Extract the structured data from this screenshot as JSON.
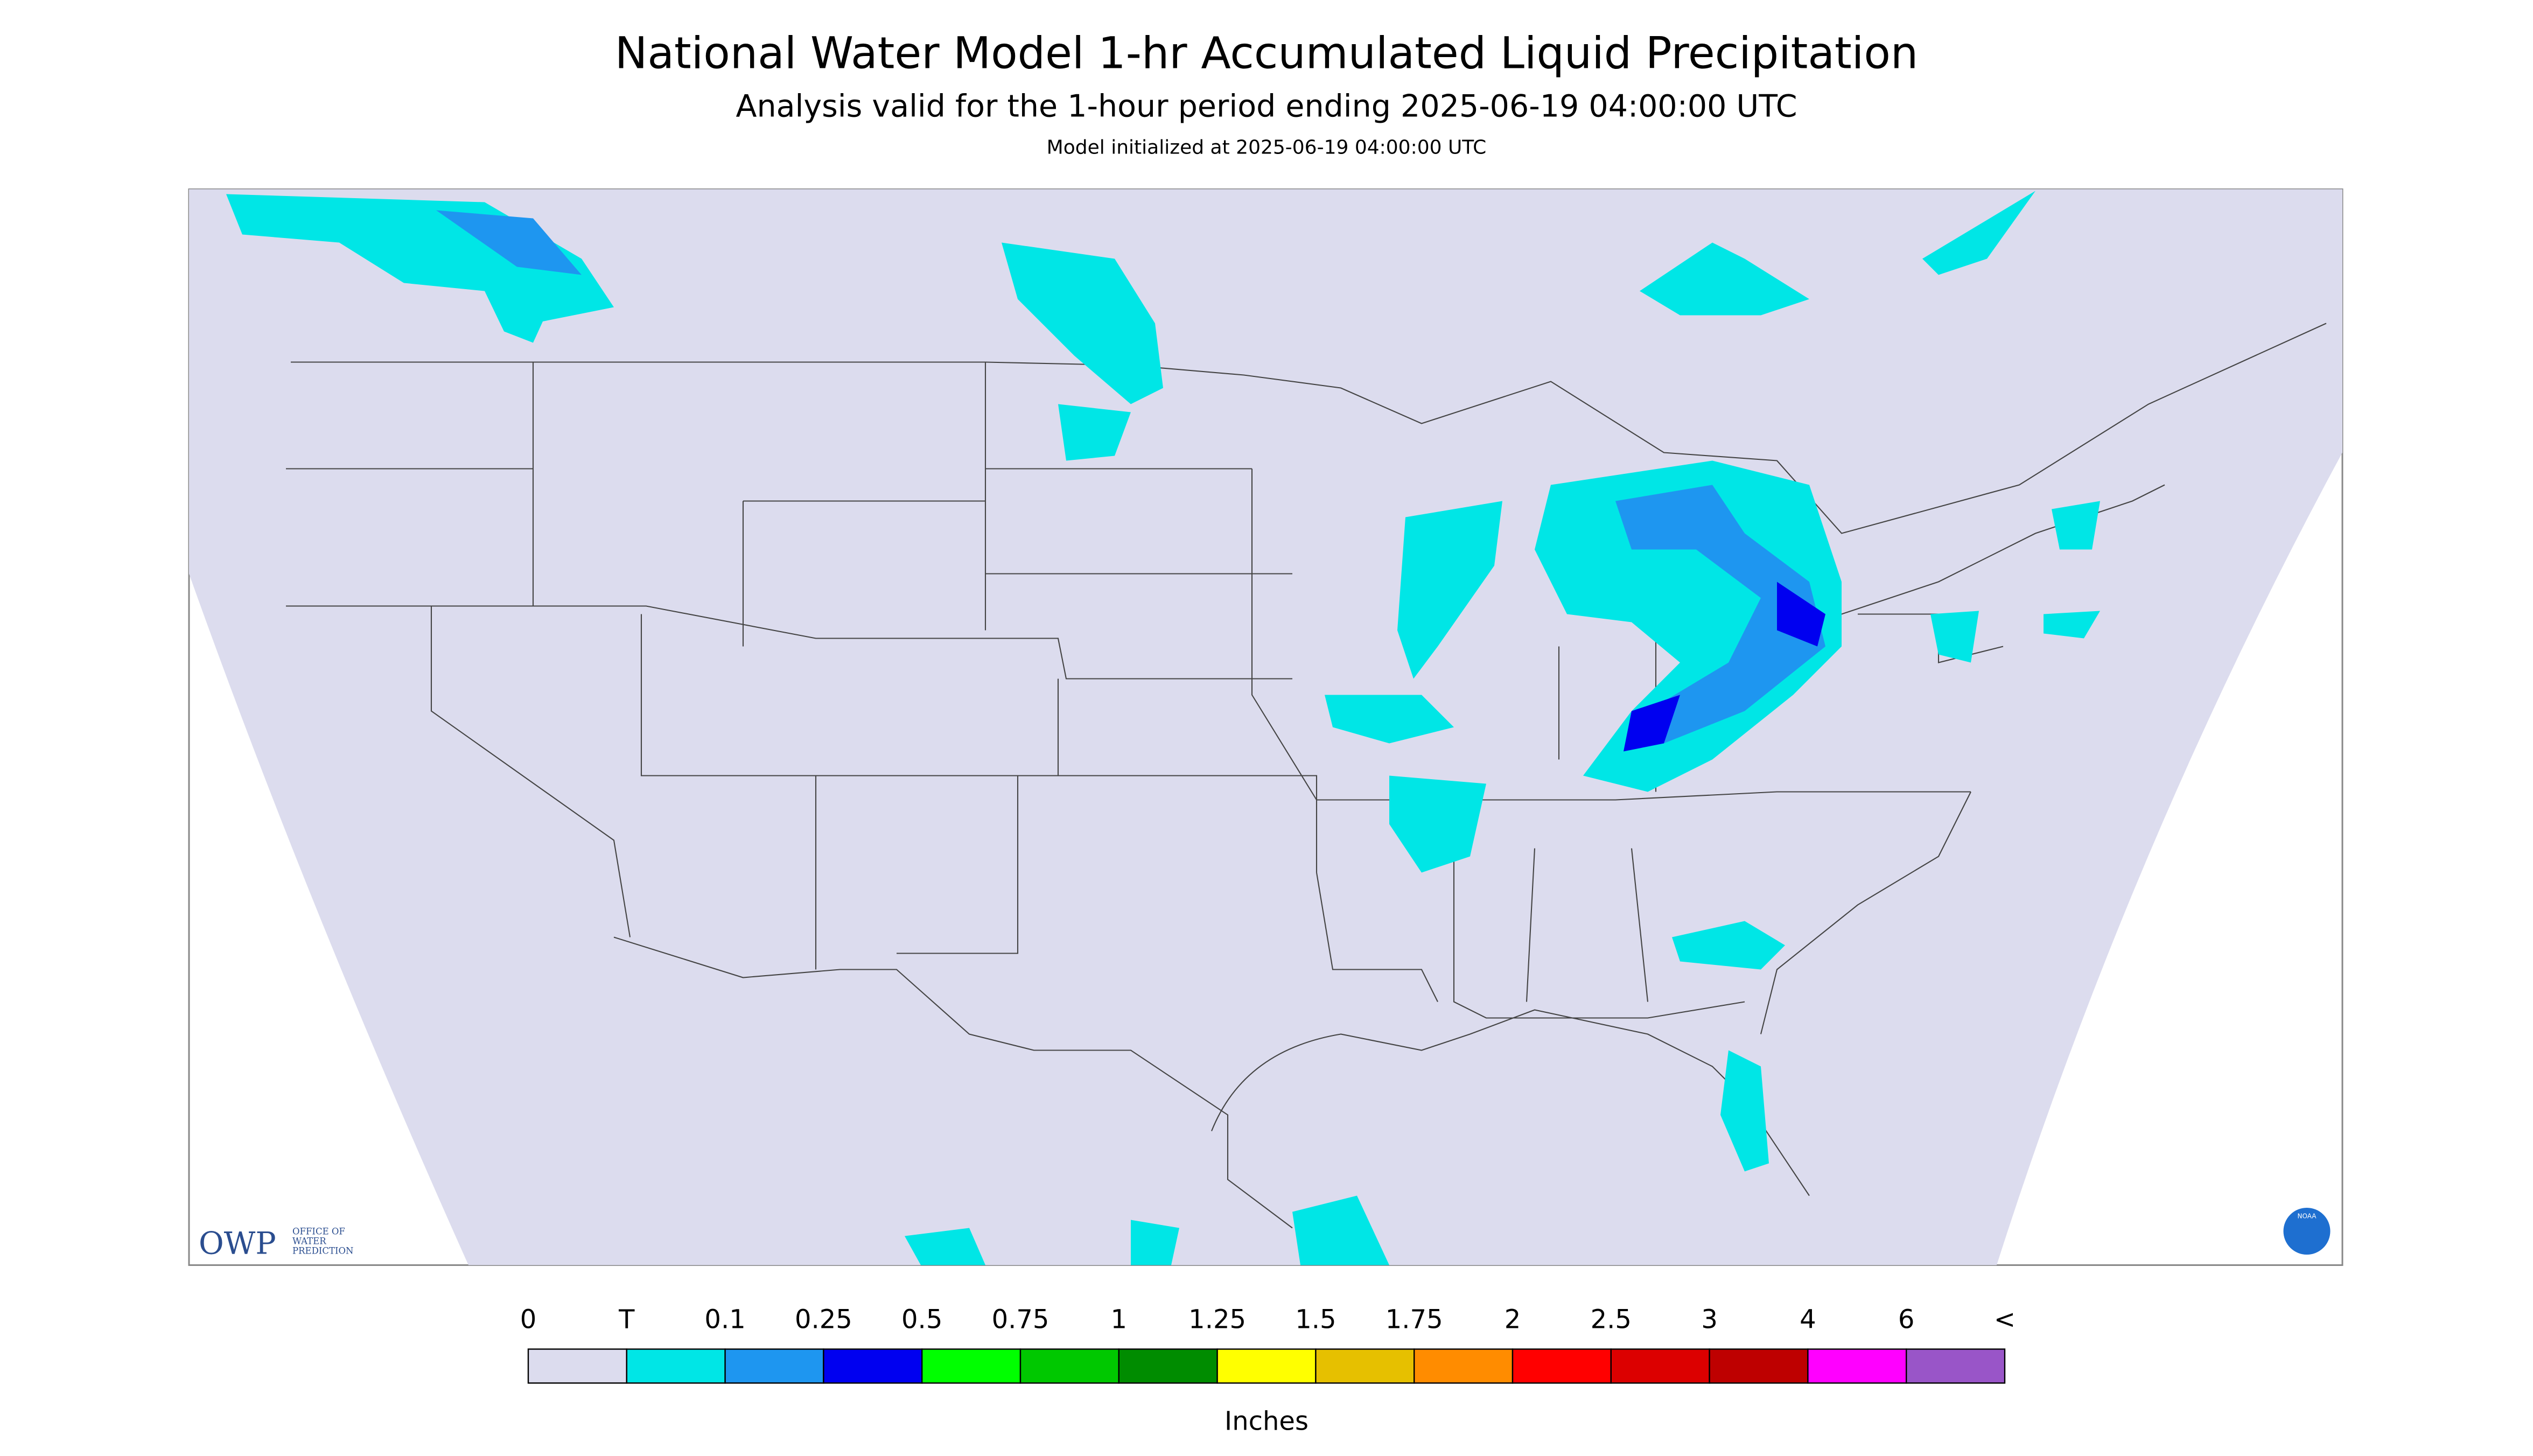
{
  "header": {
    "title": "National Water Model 1-hr Accumulated Liquid Precipitation",
    "subtitle": "Analysis valid for the 1-hour period ending 2025-06-19 04:00:00 UTC",
    "init": "Model initialized at 2025-06-19 04:00:00 UTC"
  },
  "legend": {
    "labels": [
      "0",
      "T",
      "0.1",
      "0.25",
      "0.5",
      "0.75",
      "1",
      "1.25",
      "1.5",
      "1.75",
      "2",
      "2.5",
      "3",
      "4",
      "6",
      "<"
    ],
    "colors": [
      "#dcdcee",
      "#00e6e6",
      "#1e96f0",
      "#0000f0",
      "#00ff00",
      "#00c800",
      "#008c00",
      "#ffff00",
      "#e6c000",
      "#ff8c00",
      "#ff0000",
      "#dc0000",
      "#be0000",
      "#ff00ff",
      "#9955c8"
    ],
    "unit": "Inches"
  },
  "logos": {
    "owp": "OWP",
    "owp_text": [
      "OFFICE OF",
      "WATER",
      "PREDICTION"
    ],
    "noaa": "NOAA"
  }
}
